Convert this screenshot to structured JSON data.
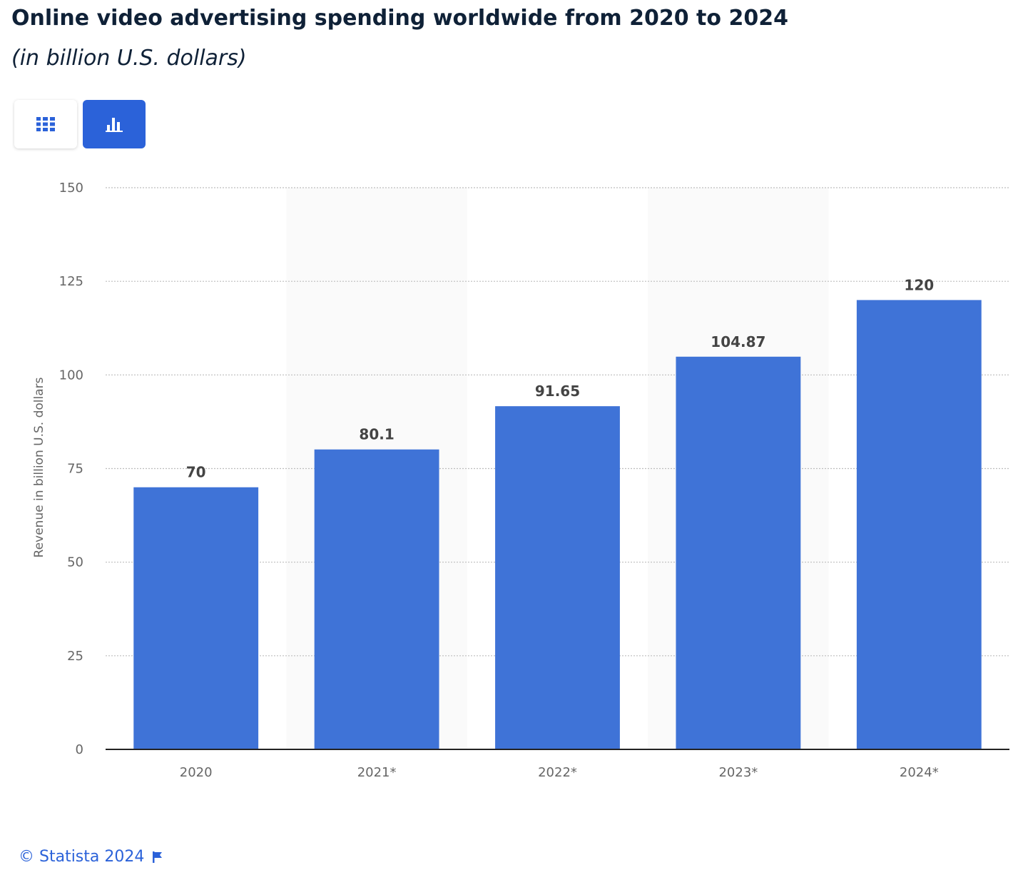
{
  "header": {
    "title": "Online video advertising spending worldwide from 2020 to 2024",
    "subtitle": "(in billion U.S. dollars)"
  },
  "toolbar": {
    "table_icon": "grid-table-icon",
    "chart_icon": "bar-chart-icon",
    "active_view": "chart",
    "active_color": "#2b62d9"
  },
  "chart_data": {
    "type": "bar",
    "categories": [
      "2020",
      "2021*",
      "2022*",
      "2023*",
      "2024*"
    ],
    "values": [
      70,
      80.1,
      91.65,
      104.87,
      120
    ],
    "data_labels": [
      "70",
      "80.1",
      "91.65",
      "104.87",
      "120"
    ],
    "ylabel": "Revenue in billion U.S. dollars",
    "ylim": [
      0,
      150
    ],
    "yticks": [
      0,
      25,
      50,
      75,
      100,
      125,
      150
    ],
    "grid": true,
    "bar_color": "#3f73d7",
    "alternate_band_color": "#fafafa"
  },
  "footer": {
    "credit": "© Statista 2024",
    "flag_icon": "flag-icon"
  }
}
